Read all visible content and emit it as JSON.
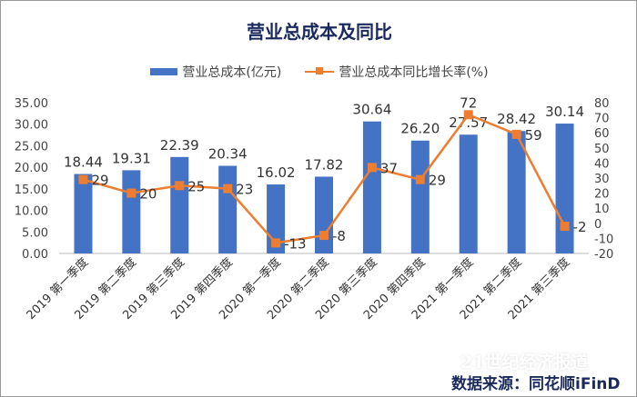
{
  "chart_data": {
    "type": "bar+line",
    "title": "营业总成本及同比",
    "categories": [
      "2019 第一季度",
      "2019 第二季度",
      "2019 第三季度",
      "2019 第四季度",
      "2020 第一季度",
      "2020 第二季度",
      "2020 第三季度",
      "2020 第四季度",
      "2021 第一季度",
      "2021 第二季度",
      "2021 第三季度"
    ],
    "series": [
      {
        "name": "营业总成本(亿元)",
        "type": "bar",
        "axis": "left",
        "color": "#4472c4",
        "values": [
          18.44,
          19.31,
          22.39,
          20.34,
          16.02,
          17.82,
          30.64,
          26.2,
          27.57,
          28.42,
          30.14
        ],
        "labels": [
          "18.44",
          "19.31",
          "22.39",
          "20.34",
          "16.02",
          "17.82",
          "30.64",
          "26.20",
          "27.57",
          "28.42",
          "30.14"
        ]
      },
      {
        "name": "营业总成本同比增长率(%)",
        "type": "line",
        "axis": "right",
        "color": "#ed7d31",
        "values": [
          29,
          20,
          25,
          23,
          -13,
          -8,
          37,
          29,
          72,
          59,
          -2
        ],
        "labels": [
          "29",
          "20",
          "25",
          "23",
          "-13",
          "-8",
          "37",
          "29",
          "72",
          "59",
          "-2"
        ]
      }
    ],
    "ylim_left": [
      0,
      35
    ],
    "yticks_left": [
      "0.00",
      "5.00",
      "10.00",
      "15.00",
      "20.00",
      "25.00",
      "30.00",
      "35.00"
    ],
    "ylim_right": [
      -20,
      80
    ],
    "yticks_right": [
      "-20",
      "-10",
      "0",
      "10",
      "20",
      "30",
      "40",
      "50",
      "60",
      "70",
      "80"
    ],
    "legend": "top"
  },
  "watermark": "21世纪经济报道",
  "source": "数据来源：同花顺iFinD"
}
